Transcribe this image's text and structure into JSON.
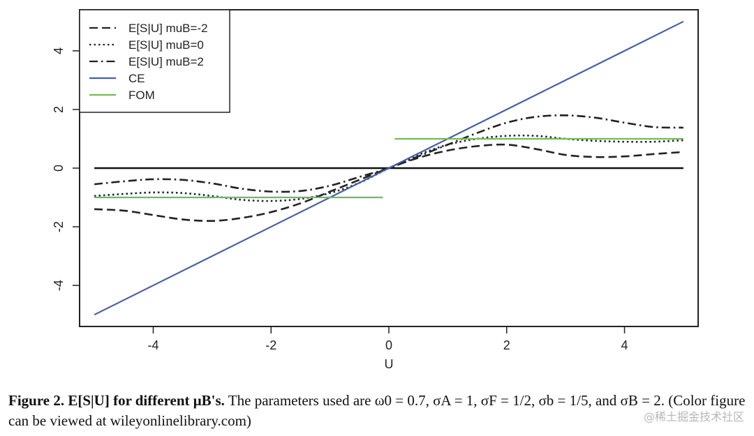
{
  "chart_data": {
    "type": "line",
    "xlabel": "U",
    "ylabel": "",
    "xlim": [
      -5.25,
      5.25
    ],
    "ylim": [
      -5.4,
      5.4
    ],
    "xticks": [
      -4,
      -2,
      0,
      2,
      4
    ],
    "yticks": [
      -4,
      -2,
      0,
      2,
      4
    ],
    "grid": false,
    "legend_position": "top-left",
    "series": [
      {
        "name": "E[S|U] muB=-2",
        "style": "dashed",
        "color": "#222222",
        "x": [
          -5,
          -4.5,
          -4,
          -3.5,
          -3,
          -2.5,
          -2,
          -1.5,
          -1,
          -0.5,
          0,
          0.5,
          1,
          1.5,
          2,
          2.5,
          3,
          3.5,
          4,
          4.5,
          5
        ],
        "y": [
          -1.4,
          -1.45,
          -1.6,
          -1.75,
          -1.8,
          -1.7,
          -1.5,
          -1.2,
          -0.8,
          -0.4,
          0,
          0.35,
          0.6,
          0.75,
          0.8,
          0.65,
          0.45,
          0.38,
          0.4,
          0.48,
          0.55
        ]
      },
      {
        "name": "E[S|U] muB=0",
        "style": "dotted",
        "color": "#222222",
        "x": [
          -5,
          -4.5,
          -4,
          -3.5,
          -3,
          -2.5,
          -2,
          -1.5,
          -1,
          -0.5,
          0,
          0.5,
          1,
          1.5,
          2,
          2.5,
          3,
          3.5,
          4,
          4.5,
          5
        ],
        "y": [
          -0.95,
          -0.88,
          -0.83,
          -0.85,
          -0.95,
          -1.08,
          -1.12,
          -1.05,
          -0.85,
          -0.5,
          0,
          0.45,
          0.8,
          1.0,
          1.1,
          1.1,
          1.0,
          0.93,
          0.9,
          0.9,
          0.95
        ]
      },
      {
        "name": "E[S|U] muB=2",
        "style": "dashdot",
        "color": "#222222",
        "x": [
          -5,
          -4.5,
          -4,
          -3.5,
          -3,
          -2.5,
          -2,
          -1.5,
          -1,
          -0.5,
          0,
          0.5,
          1,
          1.5,
          2,
          2.5,
          3,
          3.5,
          4,
          4.5,
          5
        ],
        "y": [
          -0.55,
          -0.45,
          -0.38,
          -0.4,
          -0.52,
          -0.7,
          -0.8,
          -0.78,
          -0.6,
          -0.3,
          0,
          0.4,
          0.8,
          1.2,
          1.55,
          1.75,
          1.8,
          1.72,
          1.55,
          1.4,
          1.38
        ]
      },
      {
        "name": "CE",
        "style": "solid",
        "color": "#4a5ea8",
        "x": [
          -5,
          5
        ],
        "y": [
          -5,
          5
        ]
      },
      {
        "name": "FOM",
        "style": "solid",
        "color": "#76b856",
        "segments": [
          {
            "x": [
              -5,
              -0.1
            ],
            "y": [
              -1,
              -1
            ]
          },
          {
            "x": [
              0.1,
              5
            ],
            "y": [
              1,
              1
            ]
          }
        ]
      }
    ],
    "reference_line": {
      "x": [
        -5,
        5
      ],
      "y": [
        0,
        0
      ],
      "color": "#111111"
    }
  },
  "caption": {
    "label": "Figure 2.",
    "bold_title": "E[S|U] for different μB's.",
    "text": "The parameters used are ω0 = 0.7, σA = 1, σF = 1/2, σb = 1/5, and σB = 2. (Color figure can be viewed at wileyonlinelibrary.com)"
  },
  "watermark": "@稀土掘金技术社区"
}
